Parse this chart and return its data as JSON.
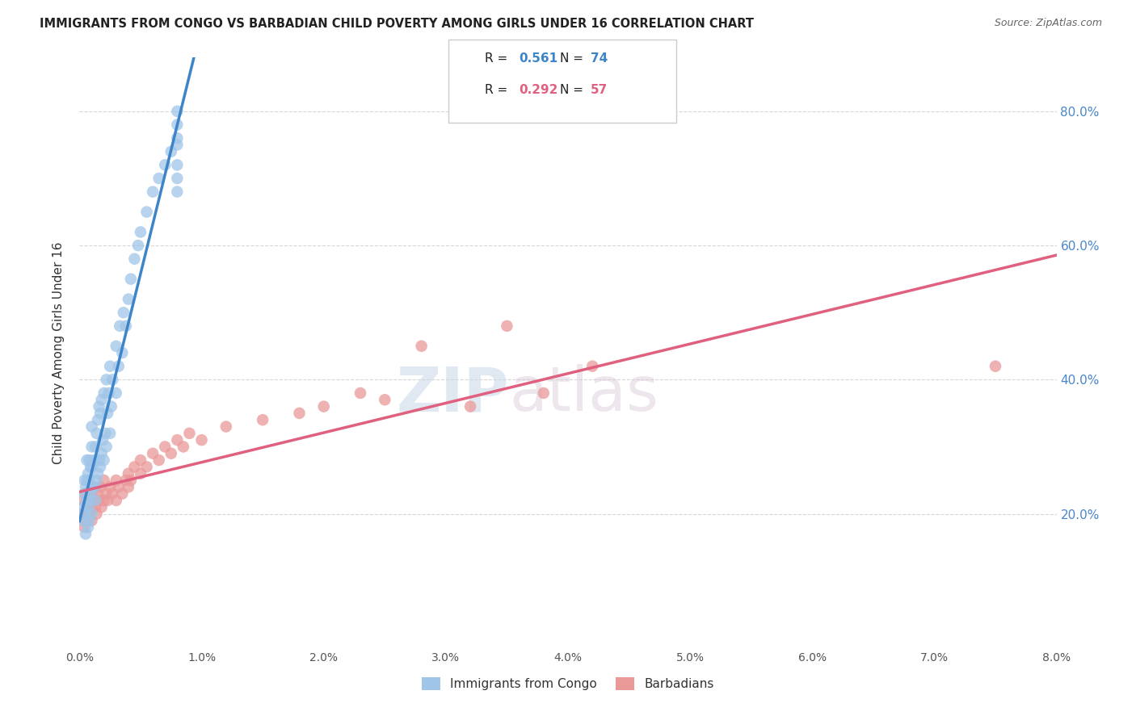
{
  "title": "IMMIGRANTS FROM CONGO VS BARBADIAN CHILD POVERTY AMONG GIRLS UNDER 16 CORRELATION CHART",
  "source": "Source: ZipAtlas.com",
  "ylabel": "Child Poverty Among Girls Under 16",
  "ytick_labels": [
    "20.0%",
    "40.0%",
    "60.0%",
    "80.0%"
  ],
  "ytick_values": [
    0.2,
    0.4,
    0.6,
    0.8
  ],
  "xlim": [
    0.0,
    0.08
  ],
  "ylim": [
    0.0,
    0.88
  ],
  "legend1_label": "Immigrants from Congo",
  "legend2_label": "Barbadians",
  "r1": "0.561",
  "n1": "74",
  "r2": "0.292",
  "n2": "57",
  "color1": "#9fc5e8",
  "color2": "#ea9999",
  "line1_color": "#3d85c8",
  "line2_color": "#e06080",
  "watermark_zip": "ZIP",
  "watermark_atlas": "atlas",
  "congo_x": [
    0.0002,
    0.0003,
    0.0004,
    0.0004,
    0.0005,
    0.0005,
    0.0005,
    0.0006,
    0.0006,
    0.0006,
    0.0007,
    0.0007,
    0.0007,
    0.0008,
    0.0008,
    0.0008,
    0.0008,
    0.0009,
    0.0009,
    0.001,
    0.001,
    0.001,
    0.001,
    0.001,
    0.0012,
    0.0012,
    0.0013,
    0.0013,
    0.0014,
    0.0014,
    0.0015,
    0.0015,
    0.0016,
    0.0016,
    0.0017,
    0.0017,
    0.0018,
    0.0018,
    0.0019,
    0.002,
    0.002,
    0.0021,
    0.0022,
    0.0022,
    0.0023,
    0.0024,
    0.0025,
    0.0025,
    0.0026,
    0.0027,
    0.003,
    0.003,
    0.0032,
    0.0033,
    0.0035,
    0.0036,
    0.0038,
    0.004,
    0.0042,
    0.0045,
    0.0048,
    0.005,
    0.0055,
    0.006,
    0.0065,
    0.007,
    0.0075,
    0.008,
    0.008,
    0.008,
    0.008,
    0.008,
    0.008,
    0.008
  ],
  "congo_y": [
    0.21,
    0.19,
    0.23,
    0.25,
    0.17,
    0.2,
    0.24,
    0.22,
    0.25,
    0.28,
    0.18,
    0.21,
    0.26,
    0.19,
    0.22,
    0.25,
    0.28,
    0.23,
    0.27,
    0.2,
    0.24,
    0.27,
    0.3,
    0.33,
    0.24,
    0.28,
    0.22,
    0.3,
    0.25,
    0.32,
    0.26,
    0.34,
    0.28,
    0.36,
    0.27,
    0.35,
    0.29,
    0.37,
    0.31,
    0.28,
    0.38,
    0.32,
    0.3,
    0.4,
    0.35,
    0.38,
    0.32,
    0.42,
    0.36,
    0.4,
    0.38,
    0.45,
    0.42,
    0.48,
    0.44,
    0.5,
    0.48,
    0.52,
    0.55,
    0.58,
    0.6,
    0.62,
    0.65,
    0.68,
    0.7,
    0.72,
    0.74,
    0.76,
    0.7,
    0.68,
    0.72,
    0.75,
    0.78,
    0.8
  ],
  "barbadian_x": [
    0.0002,
    0.0003,
    0.0004,
    0.0005,
    0.0005,
    0.0006,
    0.0007,
    0.0008,
    0.0009,
    0.001,
    0.001,
    0.0011,
    0.0012,
    0.0013,
    0.0014,
    0.0015,
    0.0016,
    0.0017,
    0.0018,
    0.002,
    0.002,
    0.0022,
    0.0023,
    0.0025,
    0.0027,
    0.003,
    0.003,
    0.0032,
    0.0035,
    0.0038,
    0.004,
    0.004,
    0.0042,
    0.0045,
    0.005,
    0.005,
    0.0055,
    0.006,
    0.0065,
    0.007,
    0.0075,
    0.008,
    0.0085,
    0.009,
    0.01,
    0.012,
    0.015,
    0.018,
    0.02,
    0.023,
    0.025,
    0.028,
    0.032,
    0.035,
    0.038,
    0.042,
    0.075
  ],
  "barbadian_y": [
    0.2,
    0.22,
    0.18,
    0.23,
    0.19,
    0.21,
    0.2,
    0.22,
    0.21,
    0.23,
    0.19,
    0.22,
    0.24,
    0.21,
    0.2,
    0.23,
    0.22,
    0.24,
    0.21,
    0.22,
    0.25,
    0.23,
    0.22,
    0.24,
    0.23,
    0.22,
    0.25,
    0.24,
    0.23,
    0.25,
    0.24,
    0.26,
    0.25,
    0.27,
    0.26,
    0.28,
    0.27,
    0.29,
    0.28,
    0.3,
    0.29,
    0.31,
    0.3,
    0.32,
    0.31,
    0.33,
    0.34,
    0.35,
    0.36,
    0.38,
    0.37,
    0.45,
    0.36,
    0.48,
    0.38,
    0.42,
    0.42
  ]
}
